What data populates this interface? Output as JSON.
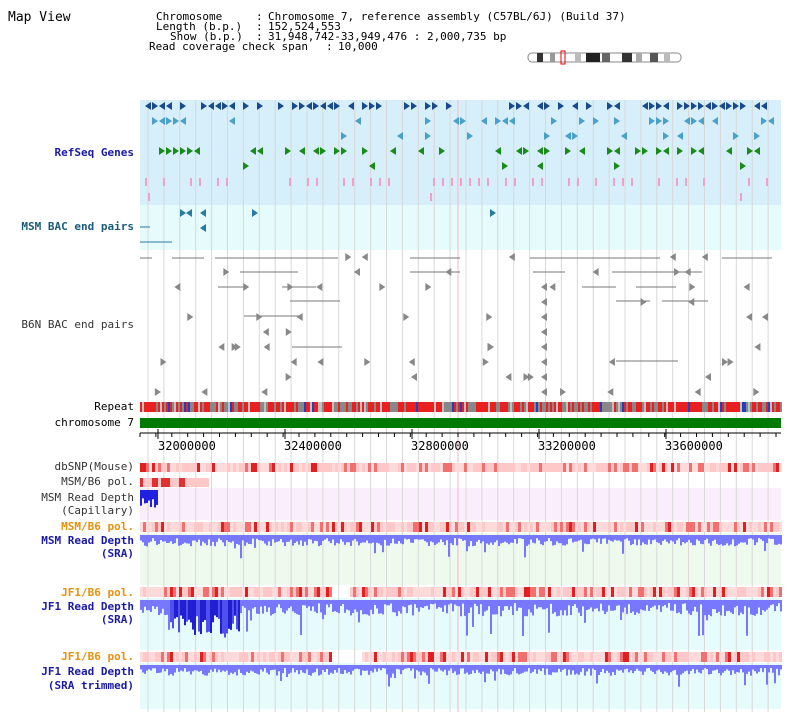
{
  "title": "Map View",
  "header": {
    "chromosome_label": "Chromosome",
    "chromosome_value": "Chromosome 7, reference assembly (C57BL/6J) (Build 37)",
    "length_label": "Length (b.p.)",
    "length_value": "152,524,553",
    "show_label": "Show (b.p.)",
    "show_value": "31,948,742-33,949,476 : 2,000,735 bp",
    "coverage_label": "Read coverage check span",
    "coverage_value": "10,000"
  },
  "tracks": {
    "refseq": "RefSeq Genes",
    "msm_bac": "MSM BAC end pairs",
    "b6n_bac": "B6N BAC end pairs",
    "repeat": "Repeat",
    "chromosome": "chromosome 7",
    "dbsnp": "dbSNP(Mouse)",
    "msm_b6_pol_1": "MSM/B6 pol.",
    "msm_depth_cap_1": "MSM Read Depth",
    "msm_depth_cap_2": "(Capillary)",
    "msm_b6_pol_2": "MSM/B6 pol.",
    "msm_depth_sra_1": "MSM Read Depth",
    "msm_depth_sra_2": "(SRA)",
    "jf1_b6_pol_1": "JF1/B6 pol.",
    "jf1_depth_sra_1": "JF1 Read Depth",
    "jf1_depth_sra_2": "(SRA)",
    "jf1_b6_pol_2": "JF1/B6 pol.",
    "jf1_depth_trim_1": "JF1 Read Depth",
    "jf1_depth_trim_2": "(SRA trimmed)"
  },
  "axis": {
    "ticks": [
      "32000000",
      "32400000",
      "32800000",
      "33200000",
      "33600000"
    ]
  },
  "colors": {
    "refseq_bg": "#d6effa",
    "bac_bg": "#e6fbfc",
    "chromosome_bar": "#007a00",
    "pol_track": "#ffc8c8",
    "depth_bar": "#7878ff",
    "msm_cap_bg": "#fbeefc",
    "msm_sra_bg": "#effaef",
    "jf1_bg": "#e6fbfc"
  }
}
